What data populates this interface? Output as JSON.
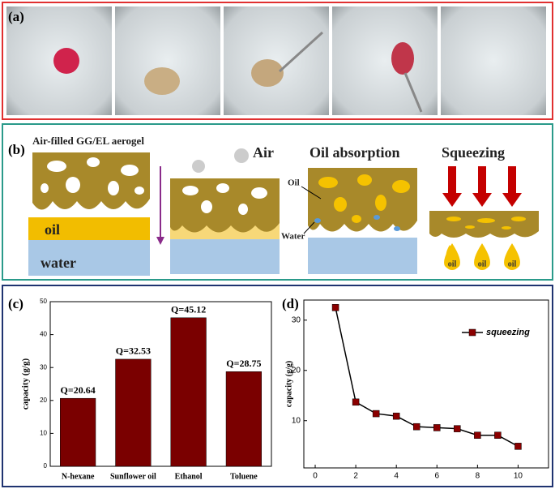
{
  "panel_labels": [
    "(a)",
    "(b)",
    "(c)",
    "(d)"
  ],
  "diagram": {
    "aerogel_label": "Air-filled GG/EL aerogel",
    "oil_layer": "oil",
    "water_layer": "water",
    "air": "Air",
    "oil_absorption": "Oil absorption",
    "oil_pointer": "Oil",
    "water_pointer": "Water",
    "squeezing": "Squeezing",
    "drops": [
      "oil",
      "oil",
      "oil"
    ]
  },
  "chart_data": [
    {
      "type": "bar",
      "categories": [
        "N-hexane",
        "Sunflower oil",
        "Ethanol",
        "Toluene"
      ],
      "values": [
        20.64,
        32.53,
        45.12,
        28.75
      ],
      "value_labels": [
        "Q=20.64",
        "Q=32.53",
        "Q=45.12",
        "Q=28.75"
      ],
      "color": "#7a0000",
      "ylabel": "capacity (g/g)",
      "ylim": [
        0,
        50
      ],
      "yticks": [
        0,
        10,
        20,
        30,
        40,
        50
      ]
    },
    {
      "type": "line",
      "x": [
        1,
        2,
        3,
        4,
        5,
        6,
        7,
        8,
        9,
        10
      ],
      "series": [
        {
          "name": "squeezing",
          "color": "#8b0000",
          "values": [
            32.5,
            13.7,
            11.4,
            10.9,
            8.8,
            8.6,
            8.4,
            7.1,
            7.1,
            4.9
          ]
        }
      ],
      "ylabel": "capacity (g/g)",
      "xlim": [
        -0.56,
        11.5
      ],
      "xticks": [
        0,
        2,
        4,
        6,
        8,
        10
      ],
      "ylim": [
        0.6,
        34
      ],
      "yticks": [
        10,
        20,
        30
      ],
      "legend": "upper right"
    }
  ]
}
